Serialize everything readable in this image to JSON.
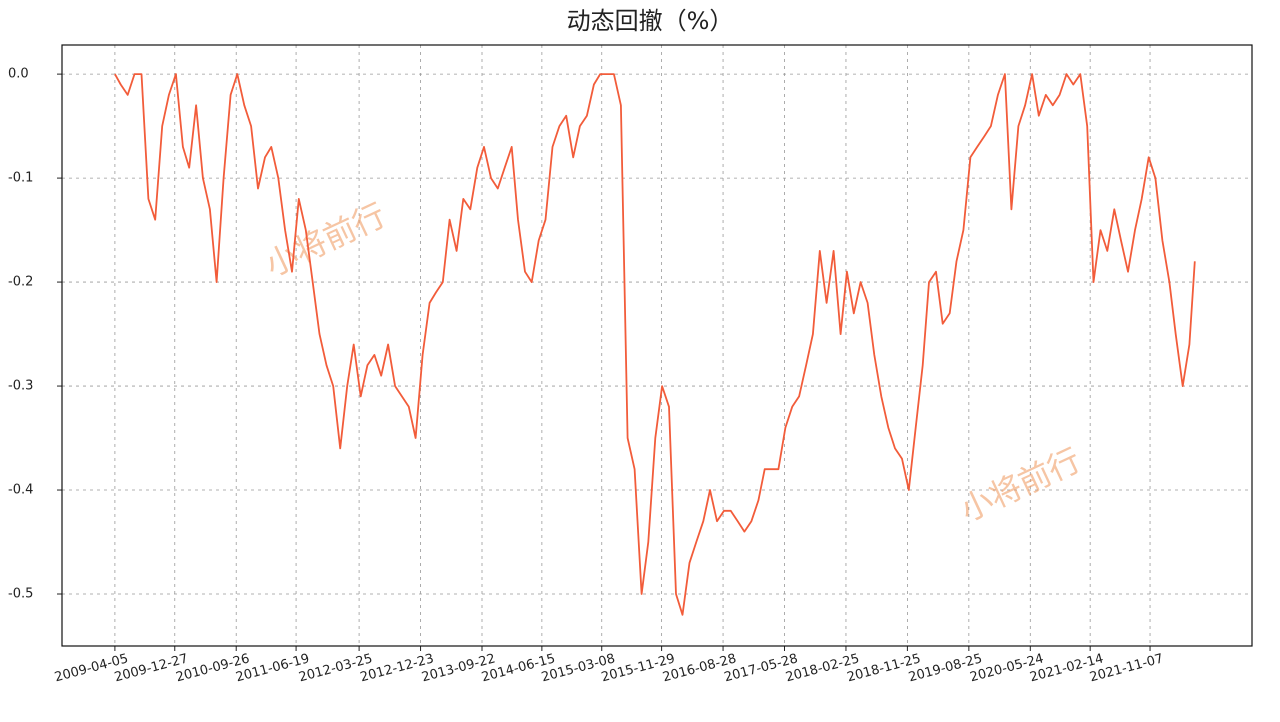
{
  "chart_data": {
    "type": "line",
    "title": "动态回撤（%）",
    "color": "#f25c3a",
    "grid": true,
    "watermarks": [
      "小将前行",
      "小将前行"
    ],
    "xlim": [
      "2008-08-13",
      "2023-02-03"
    ],
    "xticks": [
      "2009-04-05",
      "2009-12-27",
      "2010-09-26",
      "2011-06-19",
      "2012-03-25",
      "2012-12-23",
      "2013-09-22",
      "2014-06-15",
      "2015-03-08",
      "2015-11-29",
      "2016-08-28",
      "2017-05-28",
      "2018-02-25",
      "2018-11-25",
      "2019-08-25",
      "2020-05-24",
      "2021-02-14",
      "2021-11-07"
    ],
    "ylim": [
      -0.55,
      0.028
    ],
    "yticks": [
      {
        "value": 0,
        "label": "0.0"
      },
      -0.1,
      -0.2,
      -0.3,
      -0.4,
      -0.5
    ],
    "x": [
      "2009-04-05",
      "2009-05-01",
      "2009-06-01",
      "2009-07-01",
      "2009-08-01",
      "2009-09-01",
      "2009-10-01",
      "2009-11-01",
      "2009-12-01",
      "2010-01-01",
      "2010-02-01",
      "2010-03-01",
      "2010-04-01",
      "2010-05-01",
      "2010-06-01",
      "2010-07-01",
      "2010-08-01",
      "2010-09-01",
      "2010-10-01",
      "2010-11-01",
      "2010-12-01",
      "2011-01-01",
      "2011-02-01",
      "2011-03-01",
      "2011-04-01",
      "2011-05-01",
      "2011-06-01",
      "2011-07-01",
      "2011-08-01",
      "2011-09-01",
      "2011-10-01",
      "2011-11-01",
      "2011-12-01",
      "2012-01-01",
      "2012-02-01",
      "2012-03-01",
      "2012-04-01",
      "2012-05-01",
      "2012-06-01",
      "2012-07-01",
      "2012-08-01",
      "2012-09-01",
      "2012-10-01",
      "2012-11-01",
      "2012-12-01",
      "2013-01-01",
      "2013-02-01",
      "2013-03-01",
      "2013-04-01",
      "2013-05-01",
      "2013-06-01",
      "2013-07-01",
      "2013-08-01",
      "2013-09-01",
      "2013-10-01",
      "2013-11-01",
      "2013-12-01",
      "2014-01-01",
      "2014-02-01",
      "2014-03-01",
      "2014-04-01",
      "2014-05-01",
      "2014-06-01",
      "2014-07-01",
      "2014-08-01",
      "2014-09-01",
      "2014-10-01",
      "2014-11-01",
      "2014-12-01",
      "2015-01-01",
      "2015-02-01",
      "2015-03-01",
      "2015-04-01",
      "2015-05-01",
      "2015-06-01",
      "2015-07-01",
      "2015-08-01",
      "2015-09-01",
      "2015-10-01",
      "2015-11-01",
      "2015-12-01",
      "2016-01-01",
      "2016-02-01",
      "2016-03-01",
      "2016-04-01",
      "2016-05-01",
      "2016-06-01",
      "2016-07-01",
      "2016-08-01",
      "2016-09-01",
      "2016-10-01",
      "2016-11-01",
      "2016-12-01",
      "2017-01-01",
      "2017-02-01",
      "2017-03-01",
      "2017-04-01",
      "2017-05-01",
      "2017-06-01",
      "2017-07-01",
      "2017-08-01",
      "2017-09-01",
      "2017-10-01",
      "2017-11-01",
      "2017-12-01",
      "2018-01-01",
      "2018-02-01",
      "2018-03-01",
      "2018-04-01",
      "2018-05-01",
      "2018-06-01",
      "2018-07-01",
      "2018-08-01",
      "2018-09-01",
      "2018-10-01",
      "2018-11-01",
      "2018-12-01",
      "2019-01-01",
      "2019-02-01",
      "2019-03-01",
      "2019-04-01",
      "2019-05-01",
      "2019-06-01",
      "2019-07-01",
      "2019-08-01",
      "2019-09-01",
      "2019-10-01",
      "2019-11-01",
      "2019-12-01",
      "2020-01-01",
      "2020-02-01",
      "2020-03-01",
      "2020-04-01",
      "2020-05-01",
      "2020-06-01",
      "2020-07-01",
      "2020-08-01",
      "2020-09-01",
      "2020-10-01",
      "2020-11-01",
      "2020-12-01",
      "2021-01-01",
      "2021-02-01",
      "2021-03-01",
      "2021-04-01",
      "2021-05-01",
      "2021-06-01",
      "2021-07-01",
      "2021-08-01",
      "2021-09-01",
      "2021-10-01",
      "2021-11-01",
      "2021-12-01",
      "2022-01-01",
      "2022-02-01",
      "2022-03-01",
      "2022-04-01",
      "2022-05-01",
      "2022-05-25"
    ],
    "values": [
      0,
      -0.01,
      -0.02,
      0,
      0,
      -0.12,
      -0.14,
      -0.05,
      -0.02,
      0,
      -0.07,
      -0.09,
      -0.03,
      -0.1,
      -0.13,
      -0.2,
      -0.1,
      -0.02,
      0,
      -0.03,
      -0.05,
      -0.11,
      -0.08,
      -0.07,
      -0.1,
      -0.15,
      -0.19,
      -0.12,
      -0.15,
      -0.2,
      -0.25,
      -0.28,
      -0.3,
      -0.36,
      -0.3,
      -0.26,
      -0.31,
      -0.28,
      -0.27,
      -0.29,
      -0.26,
      -0.3,
      -0.31,
      -0.32,
      -0.35,
      -0.27,
      -0.22,
      -0.21,
      -0.2,
      -0.14,
      -0.17,
      -0.12,
      -0.13,
      -0.09,
      -0.07,
      -0.1,
      -0.11,
      -0.09,
      -0.07,
      -0.14,
      -0.19,
      -0.2,
      -0.16,
      -0.14,
      -0.07,
      -0.05,
      -0.04,
      -0.08,
      -0.05,
      -0.04,
      -0.01,
      0,
      0,
      0,
      -0.03,
      -0.35,
      -0.38,
      -0.5,
      -0.45,
      -0.35,
      -0.3,
      -0.32,
      -0.5,
      -0.52,
      -0.47,
      -0.45,
      -0.43,
      -0.4,
      -0.43,
      -0.42,
      -0.42,
      -0.43,
      -0.44,
      -0.43,
      -0.41,
      -0.38,
      -0.38,
      -0.38,
      -0.34,
      -0.32,
      -0.31,
      -0.28,
      -0.25,
      -0.17,
      -0.22,
      -0.17,
      -0.25,
      -0.19,
      -0.23,
      -0.2,
      -0.22,
      -0.27,
      -0.31,
      -0.34,
      -0.36,
      -0.37,
      -0.4,
      -0.34,
      -0.28,
      -0.2,
      -0.19,
      -0.24,
      -0.23,
      -0.18,
      -0.15,
      -0.08,
      -0.07,
      -0.06,
      -0.05,
      -0.02,
      0,
      -0.13,
      -0.05,
      -0.03,
      0,
      -0.04,
      -0.02,
      -0.03,
      -0.02,
      0,
      -0.01,
      0,
      -0.05,
      -0.2,
      -0.15,
      -0.17,
      -0.13,
      -0.16,
      -0.19,
      -0.15,
      -0.12,
      -0.08,
      -0.1,
      -0.16,
      -0.2,
      -0.25,
      -0.3,
      -0.26,
      -0.18
    ]
  }
}
